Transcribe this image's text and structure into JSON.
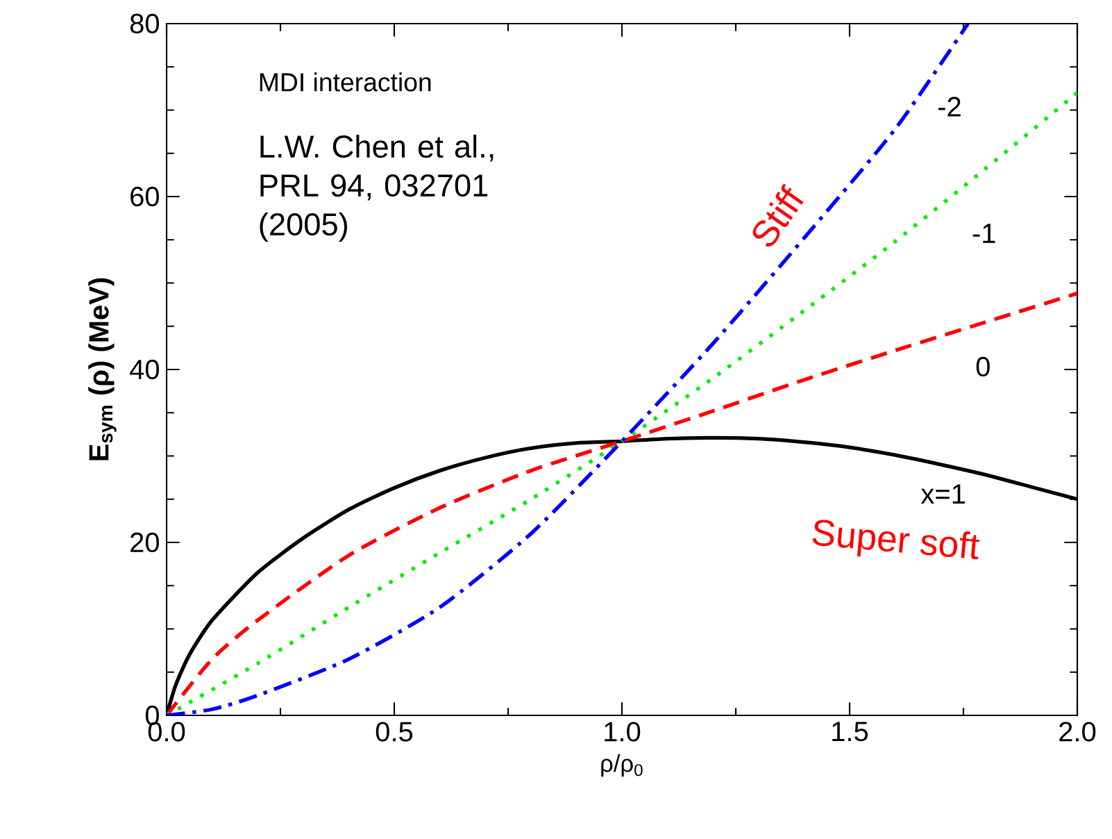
{
  "chart_data": {
    "type": "line",
    "xlabel": "ρ/ρ$_{0}$",
    "ylabel": "E$_{sym}$ (ρ) (MeV)",
    "xlim": [
      0,
      2
    ],
    "ylim": [
      0,
      80
    ],
    "xticks": [
      {
        "value": 0,
        "label": "0.0"
      },
      {
        "value": 0.5,
        "label": "0.5"
      },
      {
        "value": 1,
        "label": "1.0"
      },
      {
        "value": 1.5,
        "label": "1.5"
      },
      {
        "value": 2,
        "label": "2.0"
      }
    ],
    "yticks": [
      0,
      20,
      40,
      60,
      80
    ],
    "grid": false,
    "legend": false,
    "marker": "none",
    "annotations": [
      "MDI interaction",
      "L.W. Chen et al., PRL 94, 032701 (2005)",
      "Stiff",
      "Super soft"
    ],
    "series": [
      {
        "name": "x=1",
        "color": "#000000",
        "line_style": "solid",
        "x": [
          0,
          0.02,
          0.05,
          0.1,
          0.2,
          0.3,
          0.4,
          0.5,
          0.6,
          0.7,
          0.8,
          0.9,
          1.0,
          1.1,
          1.2,
          1.3,
          1.4,
          1.5,
          1.6,
          1.7,
          1.8,
          1.9,
          2.0
        ],
        "values": [
          0,
          3.5,
          7,
          11,
          16.5,
          20.5,
          23.8,
          26.3,
          28.3,
          29.8,
          30.9,
          31.5,
          31.7,
          32,
          32.1,
          32,
          31.6,
          31,
          30.1,
          29,
          27.8,
          26.4,
          25
        ]
      },
      {
        "name": "0",
        "color": "#ff0000",
        "line_style": "dashed",
        "x": [
          0,
          0.1,
          0.2,
          0.4,
          0.6,
          0.8,
          1.0,
          1.2,
          1.4,
          1.6,
          1.8,
          2.0
        ],
        "values": [
          0,
          6.5,
          11,
          18.5,
          24,
          28.3,
          31.7,
          35.2,
          38.8,
          42.2,
          45.5,
          48.8
        ]
      },
      {
        "name": "-1",
        "color": "#00ee00",
        "line_style": "dotted",
        "x": [
          0,
          0.2,
          0.4,
          0.6,
          0.8,
          1.0,
          1.2,
          1.4,
          1.6,
          1.8,
          2.0
        ],
        "values": [
          0,
          6,
          12.5,
          18.8,
          25,
          31.7,
          39,
          46.8,
          54.8,
          63.3,
          72
        ]
      },
      {
        "name": "-2",
        "color": "#0000ff",
        "line_style": "dashdot",
        "x": [
          0,
          0.1,
          0.2,
          0.4,
          0.6,
          0.8,
          1.0,
          1.2,
          1.4,
          1.6,
          1.76
        ],
        "values": [
          0,
          0.7,
          2.3,
          6.5,
          12.5,
          21,
          31.7,
          43,
          55.2,
          67.8,
          80
        ]
      }
    ]
  }
}
